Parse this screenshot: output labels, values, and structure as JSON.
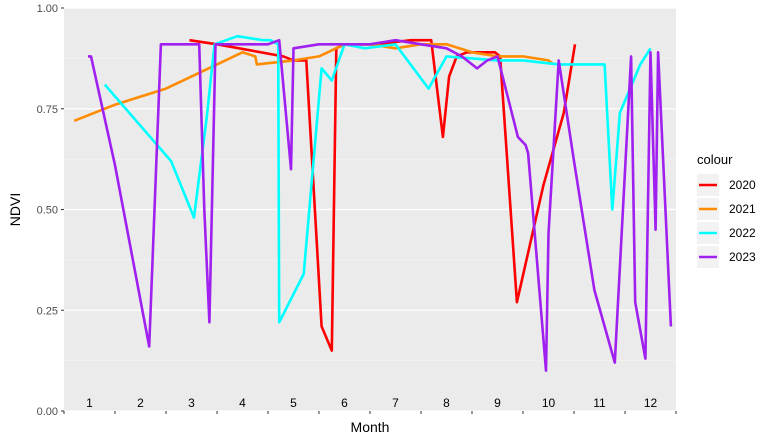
{
  "chart_data": {
    "type": "line",
    "title": "",
    "xlabel": "Month",
    "ylabel": "NDVI",
    "ylim": [
      0,
      1
    ],
    "xlim": [
      0.5,
      12.5
    ],
    "yticks": [
      0.0,
      0.25,
      0.5,
      0.75,
      1.0
    ],
    "ytick_labels": [
      "0.00",
      "0.25",
      "0.50",
      "0.75",
      "1.00"
    ],
    "month_labels": [
      "1",
      "2",
      "3",
      "4",
      "5",
      "6",
      "7",
      "8",
      "9",
      "10",
      "11",
      "12"
    ],
    "grid": true,
    "legend": {
      "title": "colour",
      "position": "right"
    },
    "series": [
      {
        "name": "2020",
        "color": "#ff0000",
        "x": [
          2.96,
          3.5,
          4.8,
          5.0,
          5.25,
          5.55,
          5.75,
          5.84,
          6.0,
          6.6,
          7.3,
          7.7,
          7.93,
          8.05,
          8.2,
          8.4,
          8.95,
          9.05,
          9.38,
          9.9,
          10.3,
          10.52
        ],
        "y": [
          0.92,
          0.91,
          0.88,
          0.87,
          0.87,
          0.21,
          0.15,
          0.9,
          0.91,
          0.91,
          0.92,
          0.92,
          0.68,
          0.83,
          0.88,
          0.89,
          0.89,
          0.88,
          0.27,
          0.56,
          0.74,
          0.91
        ]
      },
      {
        "name": "2021",
        "color": "#ff8c00",
        "x": [
          0.7,
          1.5,
          2.5,
          3.5,
          4.0,
          4.25,
          4.28,
          5.0,
          5.5,
          6.0,
          6.5,
          7.0,
          7.5,
          8.0,
          8.5,
          9.0,
          9.5,
          10.0,
          10.1
        ],
        "y": [
          0.72,
          0.76,
          0.8,
          0.86,
          0.89,
          0.88,
          0.86,
          0.87,
          0.88,
          0.91,
          0.91,
          0.9,
          0.91,
          0.91,
          0.89,
          0.88,
          0.88,
          0.87,
          0.86
        ]
      },
      {
        "name": "2022",
        "color": "#00ffff",
        "x": [
          1.3,
          2.6,
          3.05,
          3.3,
          3.45,
          3.9,
          4.4,
          4.55,
          4.7,
          4.72,
          5.2,
          5.55,
          5.75,
          6.0,
          6.4,
          7.0,
          7.65,
          8.0,
          9.0,
          9.5,
          10.2,
          10.5,
          11.1,
          11.25,
          11.4,
          11.8,
          12.0
        ],
        "y": [
          0.81,
          0.62,
          0.48,
          0.73,
          0.91,
          0.93,
          0.92,
          0.92,
          0.91,
          0.22,
          0.34,
          0.85,
          0.82,
          0.91,
          0.9,
          0.91,
          0.8,
          0.88,
          0.87,
          0.87,
          0.86,
          0.86,
          0.86,
          0.5,
          0.74,
          0.86,
          0.9
        ]
      },
      {
        "name": "2023",
        "color": "#a020f0",
        "x": [
          0.97,
          1.03,
          1.5,
          2.17,
          2.4,
          3.15,
          3.25,
          3.35,
          3.47,
          3.55,
          4.5,
          4.72,
          4.95,
          5.0,
          5.5,
          5.9,
          6.5,
          7.0,
          7.5,
          8.0,
          8.3,
          8.6,
          8.8,
          9.0,
          9.2,
          9.4,
          9.55,
          9.6,
          9.95,
          10.0,
          10.2,
          10.5,
          10.9,
          11.3,
          11.62,
          11.7,
          11.9,
          12.0,
          12.1,
          12.15,
          12.4
        ],
        "y": [
          0.88,
          0.88,
          0.61,
          0.16,
          0.91,
          0.91,
          0.5,
          0.22,
          0.91,
          0.91,
          0.91,
          0.92,
          0.6,
          0.9,
          0.91,
          0.91,
          0.91,
          0.92,
          0.91,
          0.9,
          0.88,
          0.85,
          0.87,
          0.88,
          0.78,
          0.68,
          0.66,
          0.64,
          0.1,
          0.44,
          0.87,
          0.62,
          0.3,
          0.12,
          0.88,
          0.27,
          0.13,
          0.89,
          0.45,
          0.89,
          0.21
        ]
      }
    ]
  }
}
